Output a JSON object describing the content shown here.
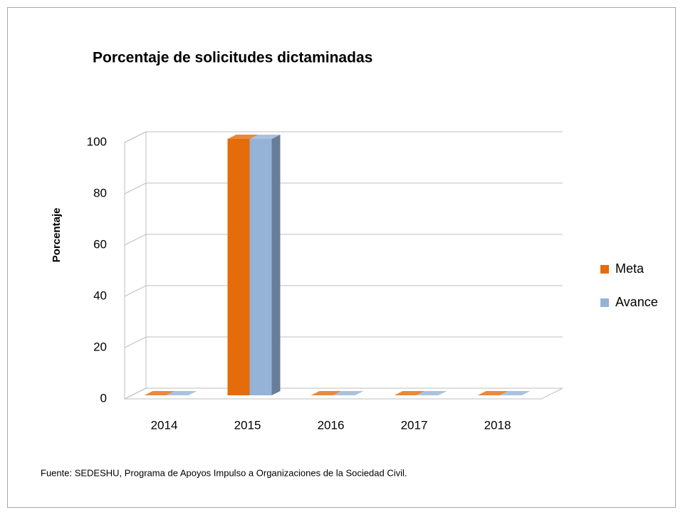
{
  "chart_data": {
    "type": "bar3d",
    "title": "Porcentaje de solicitudes dictaminadas",
    "ylabel": "Porcentaje",
    "categories": [
      "2014",
      "2015",
      "2016",
      "2017",
      "2018"
    ],
    "series": [
      {
        "name": "Meta",
        "color": "#e46c0a",
        "values": [
          0,
          100,
          0,
          0,
          0
        ]
      },
      {
        "name": "Avance",
        "color": "#95b3d7",
        "values": [
          0,
          100,
          0,
          0,
          0
        ]
      }
    ],
    "ylim": [
      0,
      100
    ],
    "yticks": [
      0,
      20,
      40,
      60,
      80,
      100
    ],
    "grid": true,
    "legend": "right",
    "source": "Fuente: SEDESHU, Programa de Apoyos Impulso a Organizaciones de la Sociedad Civil."
  }
}
